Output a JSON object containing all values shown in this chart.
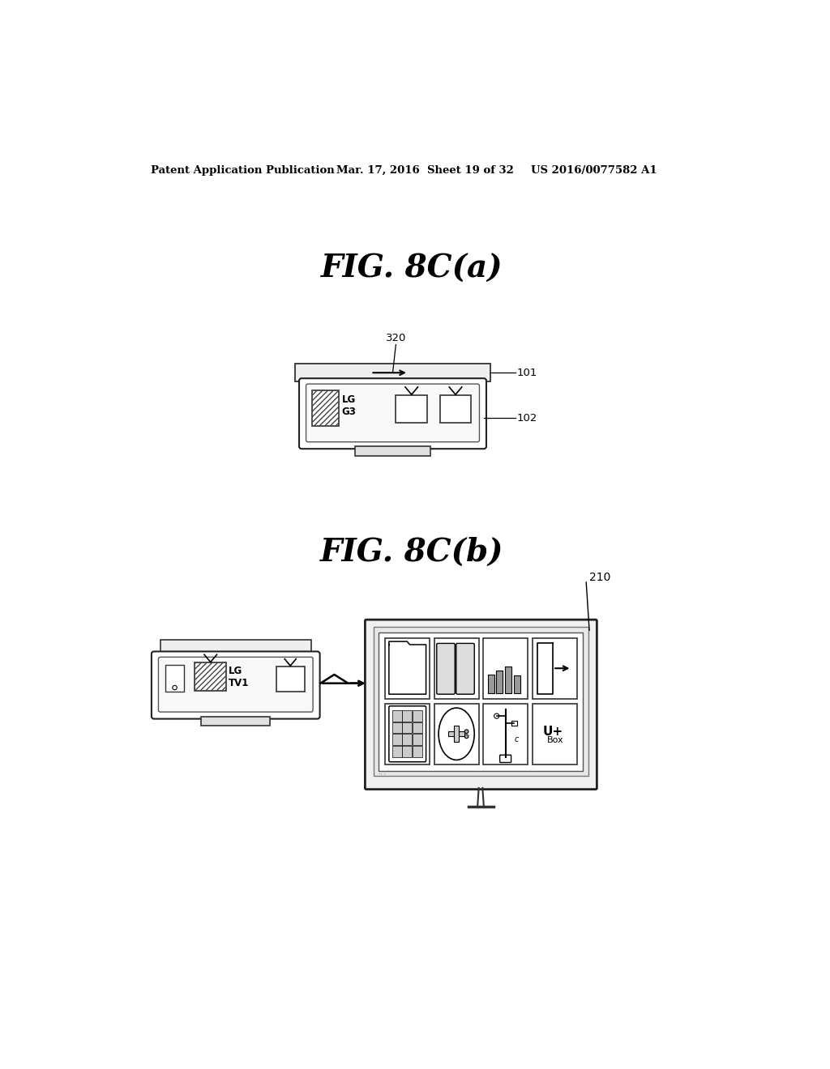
{
  "bg_color": "#ffffff",
  "header_left": "Patent Application Publication",
  "header_mid": "Mar. 17, 2016  Sheet 19 of 32",
  "header_right": "US 2016/0077582 A1",
  "fig_title_a": "FIG. 8C(a)",
  "fig_title_b": "FIG. 8C(b)",
  "label_320": "320",
  "label_101": "101",
  "label_102": "102",
  "label_210": "210",
  "label_LG_G3": "LG\nG3",
  "label_LG_TV1": "LG\nTV1"
}
